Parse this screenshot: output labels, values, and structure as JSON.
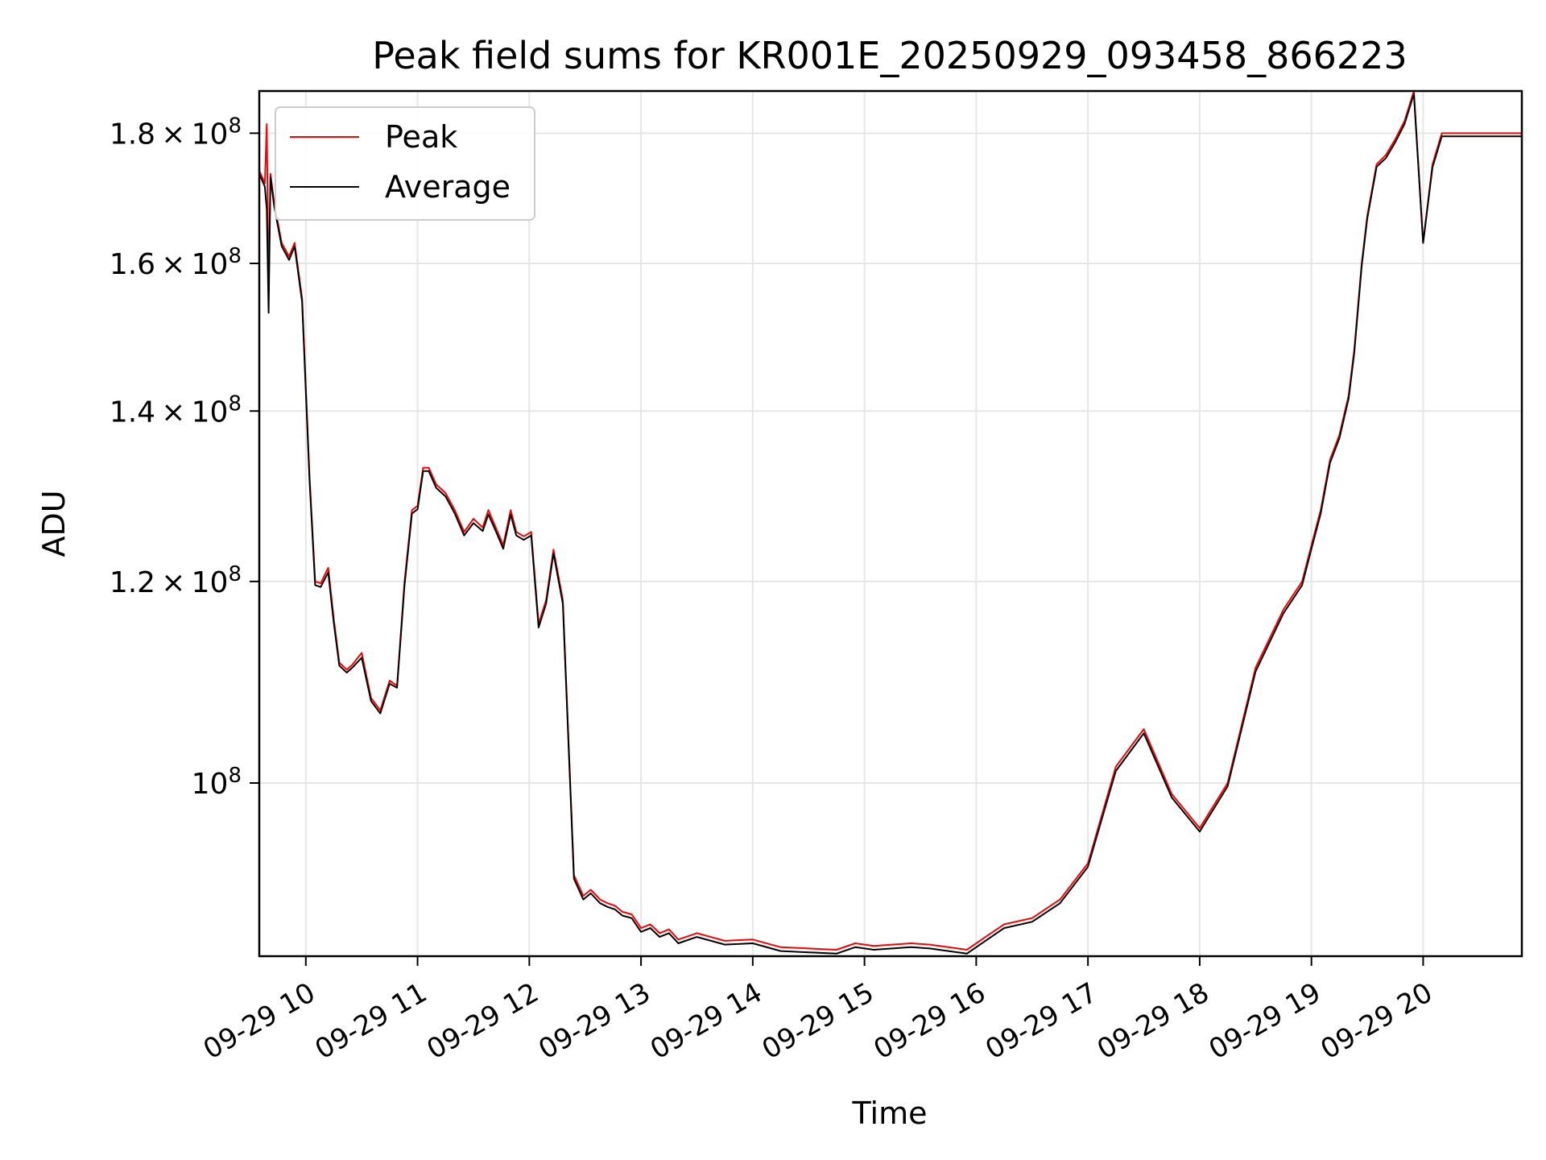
{
  "chart_data": {
    "type": "line",
    "title": "Peak field sums for KR001E_20250929_093458_866223",
    "xlabel": "Time",
    "ylabel": "ADU",
    "yscale": "log",
    "grid": true,
    "legend_position": "top-left",
    "x_range": [
      "2025-09-29 09:35",
      "2025-09-29 20:53"
    ],
    "ylim": [
      85500000,
      187000000
    ],
    "x_ticks": [
      {
        "label": "09-29 10",
        "value": "2025-09-29 10:00"
      },
      {
        "label": "09-29 11",
        "value": "2025-09-29 11:00"
      },
      {
        "label": "09-29 12",
        "value": "2025-09-29 12:00"
      },
      {
        "label": "09-29 13",
        "value": "2025-09-29 13:00"
      },
      {
        "label": "09-29 14",
        "value": "2025-09-29 14:00"
      },
      {
        "label": "09-29 15",
        "value": "2025-09-29 15:00"
      },
      {
        "label": "09-29 16",
        "value": "2025-09-29 16:00"
      },
      {
        "label": "09-29 17",
        "value": "2025-09-29 17:00"
      },
      {
        "label": "09-29 18",
        "value": "2025-09-29 18:00"
      },
      {
        "label": "09-29 19",
        "value": "2025-09-29 19:00"
      },
      {
        "label": "09-29 20",
        "value": "2025-09-29 20:00"
      }
    ],
    "y_ticks": [
      {
        "value": 180000000,
        "mantissa": "1.8",
        "base": "10",
        "exp": "8"
      },
      {
        "value": 160000000,
        "mantissa": "1.6",
        "base": "10",
        "exp": "8"
      },
      {
        "value": 140000000,
        "mantissa": "1.4",
        "base": "10",
        "exp": "8"
      },
      {
        "value": 120000000,
        "mantissa": "1.2",
        "base": "10",
        "exp": "8"
      },
      {
        "value": 100000000,
        "mantissa": "",
        "base": "10",
        "exp": "8"
      }
    ],
    "series": [
      {
        "name": "Peak",
        "color": "#ff0000",
        "x": [
          "2025-09-29 09:35",
          "2025-09-29 09:38",
          "2025-09-29 09:39",
          "2025-09-29 09:40",
          "2025-09-29 09:41",
          "2025-09-29 09:43",
          "2025-09-29 09:47",
          "2025-09-29 09:51",
          "2025-09-29 09:54",
          "2025-09-29 09:58",
          "2025-09-29 10:02",
          "2025-09-29 10:05",
          "2025-09-29 10:08",
          "2025-09-29 10:12",
          "2025-09-29 10:15",
          "2025-09-29 10:18",
          "2025-09-29 10:22",
          "2025-09-29 10:25",
          "2025-09-29 10:30",
          "2025-09-29 10:35",
          "2025-09-29 10:40",
          "2025-09-29 10:45",
          "2025-09-29 10:49",
          "2025-09-29 10:53",
          "2025-09-29 10:57",
          "2025-09-29 11:00",
          "2025-09-29 11:03",
          "2025-09-29 11:06",
          "2025-09-29 11:10",
          "2025-09-29 11:15",
          "2025-09-29 11:20",
          "2025-09-29 11:25",
          "2025-09-29 11:30",
          "2025-09-29 11:35",
          "2025-09-29 11:38",
          "2025-09-29 11:42",
          "2025-09-29 11:46",
          "2025-09-29 11:50",
          "2025-09-29 11:53",
          "2025-09-29 11:57",
          "2025-09-29 12:01",
          "2025-09-29 12:05",
          "2025-09-29 12:09",
          "2025-09-29 12:13",
          "2025-09-29 12:18",
          "2025-09-29 12:24",
          "2025-09-29 12:29",
          "2025-09-29 12:33",
          "2025-09-29 12:38",
          "2025-09-29 12:42",
          "2025-09-29 12:46",
          "2025-09-29 12:50",
          "2025-09-29 12:55",
          "2025-09-29 13:00",
          "2025-09-29 13:05",
          "2025-09-29 13:10",
          "2025-09-29 13:15",
          "2025-09-29 13:20",
          "2025-09-29 13:30",
          "2025-09-29 13:45",
          "2025-09-29 14:00",
          "2025-09-29 14:15",
          "2025-09-29 14:30",
          "2025-09-29 14:45",
          "2025-09-29 14:55",
          "2025-09-29 15:05",
          "2025-09-29 15:15",
          "2025-09-29 15:25",
          "2025-09-29 15:35",
          "2025-09-29 15:45",
          "2025-09-29 15:55",
          "2025-09-29 16:05",
          "2025-09-29 16:15",
          "2025-09-29 16:30",
          "2025-09-29 16:45",
          "2025-09-29 17:00",
          "2025-09-29 17:15",
          "2025-09-29 17:30",
          "2025-09-29 17:45",
          "2025-09-29 18:00",
          "2025-09-29 18:15",
          "2025-09-29 18:30",
          "2025-09-29 18:45",
          "2025-09-29 18:55",
          "2025-09-29 19:00",
          "2025-09-29 19:05",
          "2025-09-29 19:10",
          "2025-09-29 19:15",
          "2025-09-29 19:20",
          "2025-09-29 19:23",
          "2025-09-29 19:27",
          "2025-09-29 19:30",
          "2025-09-29 19:35",
          "2025-09-29 19:40",
          "2025-09-29 19:45",
          "2025-09-29 19:50",
          "2025-09-29 19:55",
          "2025-09-29 20:00",
          "2025-09-29 20:05",
          "2025-09-29 20:10",
          "2025-09-29 20:15",
          "2025-09-29 20:20",
          "2025-09-29 20:25",
          "2025-09-29 20:30",
          "2025-09-29 20:35",
          "2025-09-29 20:40",
          "2025-09-29 20:45",
          "2025-09-29 20:47",
          "2025-09-29 20:48",
          "2025-09-29 20:50",
          "2025-09-29 20:53"
        ],
        "y": [
          174000000,
          172000000,
          181500000,
          156000000,
          173500000,
          169000000,
          163000000,
          161000000,
          163000000,
          155000000,
          132000000,
          120000000,
          119800000,
          121500000,
          116000000,
          111500000,
          110800000,
          111300000,
          112500000,
          108000000,
          106800000,
          109700000,
          109200000,
          120000000,
          128000000,
          128500000,
          133000000,
          133000000,
          131000000,
          130000000,
          128000000,
          125500000,
          127000000,
          126000000,
          128000000,
          126000000,
          124000000,
          128000000,
          125500000,
          125000000,
          125500000,
          115500000,
          118000000,
          123500000,
          118000000,
          92000000,
          90300000,
          90800000,
          90000000,
          89700000,
          89500000,
          89000000,
          88800000,
          87700000,
          88000000,
          87300000,
          87600000,
          86800000,
          87300000,
          86700000,
          86800000,
          86200000,
          86100000,
          86000000,
          86500000,
          86300000,
          86400000,
          86500000,
          86400000,
          86200000,
          86000000,
          87000000,
          88000000,
          88500000,
          90000000,
          93000000,
          101500000,
          105000000,
          99000000,
          96000000,
          100000000,
          111000000,
          117000000,
          120000000,
          124000000,
          128000000,
          134000000,
          137000000,
          142000000,
          148000000,
          160000000,
          167000000,
          175000000,
          176500000,
          179000000,
          182000000,
          187000000,
          163000000,
          175000000,
          180000000,
          180000000,
          180000000,
          180000000,
          180000000,
          180000000,
          180000000,
          180000000,
          180000000,
          180000000,
          180000000,
          180000000
        ],
        "note_shape": ""
      },
      {
        "name": "Average",
        "color": "#000000",
        "x": [
          "2025-09-29 09:35",
          "2025-09-29 09:38",
          "2025-09-29 09:39",
          "2025-09-29 09:40",
          "2025-09-29 09:41",
          "2025-09-29 09:43",
          "2025-09-29 09:47",
          "2025-09-29 09:51",
          "2025-09-29 09:54",
          "2025-09-29 09:58",
          "2025-09-29 10:02",
          "2025-09-29 10:05",
          "2025-09-29 10:08",
          "2025-09-29 10:12",
          "2025-09-29 10:15",
          "2025-09-29 10:18",
          "2025-09-29 10:22",
          "2025-09-29 10:25",
          "2025-09-29 10:30",
          "2025-09-29 10:35",
          "2025-09-29 10:40",
          "2025-09-29 10:45",
          "2025-09-29 10:49",
          "2025-09-29 10:53",
          "2025-09-29 10:57",
          "2025-09-29 11:00",
          "2025-09-29 11:03",
          "2025-09-29 11:06",
          "2025-09-29 11:10",
          "2025-09-29 11:15",
          "2025-09-29 11:20",
          "2025-09-29 11:25",
          "2025-09-29 11:30",
          "2025-09-29 11:35",
          "2025-09-29 11:38",
          "2025-09-29 11:42",
          "2025-09-29 11:46",
          "2025-09-29 11:50",
          "2025-09-29 11:53",
          "2025-09-29 11:57",
          "2025-09-29 12:01",
          "2025-09-29 12:05",
          "2025-09-29 12:09",
          "2025-09-29 12:13",
          "2025-09-29 12:18",
          "2025-09-29 12:24",
          "2025-09-29 12:29",
          "2025-09-29 12:33",
          "2025-09-29 12:38",
          "2025-09-29 12:42",
          "2025-09-29 12:46",
          "2025-09-29 12:50",
          "2025-09-29 12:55",
          "2025-09-29 13:00",
          "2025-09-29 13:05",
          "2025-09-29 13:10",
          "2025-09-29 13:15",
          "2025-09-29 13:20",
          "2025-09-29 13:30",
          "2025-09-29 13:45",
          "2025-09-29 14:00",
          "2025-09-29 14:15",
          "2025-09-29 14:30",
          "2025-09-29 14:45",
          "2025-09-29 14:55",
          "2025-09-29 15:05",
          "2025-09-29 15:15",
          "2025-09-29 15:25",
          "2025-09-29 15:35",
          "2025-09-29 15:45",
          "2025-09-29 15:55",
          "2025-09-29 16:05",
          "2025-09-29 16:15",
          "2025-09-29 16:30",
          "2025-09-29 16:45",
          "2025-09-29 17:00",
          "2025-09-29 17:15",
          "2025-09-29 17:30",
          "2025-09-29 17:45",
          "2025-09-29 18:00",
          "2025-09-29 18:15",
          "2025-09-29 18:30",
          "2025-09-29 18:45",
          "2025-09-29 18:55",
          "2025-09-29 19:00",
          "2025-09-29 19:05",
          "2025-09-29 19:10",
          "2025-09-29 19:15",
          "2025-09-29 19:20",
          "2025-09-29 19:23",
          "2025-09-29 19:27",
          "2025-09-29 19:30",
          "2025-09-29 19:35",
          "2025-09-29 19:40",
          "2025-09-29 19:45",
          "2025-09-29 19:50",
          "2025-09-29 19:55",
          "2025-09-29 20:00",
          "2025-09-29 20:05",
          "2025-09-29 20:10",
          "2025-09-29 20:15",
          "2025-09-29 20:20",
          "2025-09-29 20:25",
          "2025-09-29 20:30",
          "2025-09-29 20:35",
          "2025-09-29 20:40",
          "2025-09-29 20:45",
          "2025-09-29 20:47",
          "2025-09-29 20:48",
          "2025-09-29 20:50",
          "2025-09-29 20:53"
        ],
        "y": [
          173500000,
          171500000,
          168000000,
          153000000,
          173000000,
          168500000,
          162500000,
          160500000,
          162500000,
          154500000,
          131500000,
          119600000,
          119400000,
          121000000,
          115600000,
          111200000,
          110500000,
          111000000,
          112000000,
          107700000,
          106500000,
          109400000,
          109000000,
          119600000,
          127600000,
          128100000,
          132600000,
          132600000,
          130600000,
          129600000,
          127600000,
          125100000,
          126500000,
          125600000,
          127500000,
          125600000,
          123600000,
          127500000,
          125100000,
          124600000,
          125100000,
          115100000,
          117600000,
          123100000,
          117600000,
          91700000,
          90000000,
          90500000,
          89700000,
          89400000,
          89200000,
          88700000,
          88500000,
          87400000,
          87700000,
          87000000,
          87300000,
          86500000,
          87000000,
          86400000,
          86500000,
          85900000,
          85800000,
          85700000,
          86200000,
          86000000,
          86100000,
          86200000,
          86100000,
          85900000,
          85700000,
          86700000,
          87700000,
          88200000,
          89700000,
          92700000,
          101100000,
          104600000,
          98700000,
          95700000,
          99700000,
          110600000,
          116600000,
          119600000,
          123600000,
          127600000,
          133600000,
          136600000,
          141600000,
          147600000,
          159600000,
          166600000,
          174600000,
          176000000,
          178500000,
          181500000,
          186500000,
          163000000,
          174500000,
          179500000,
          179500000,
          179500000,
          179500000,
          179500000,
          179500000,
          179500000,
          179500000,
          179500000,
          179500000,
          179500000,
          179500000
        ],
        "note_shape": ""
      }
    ]
  }
}
